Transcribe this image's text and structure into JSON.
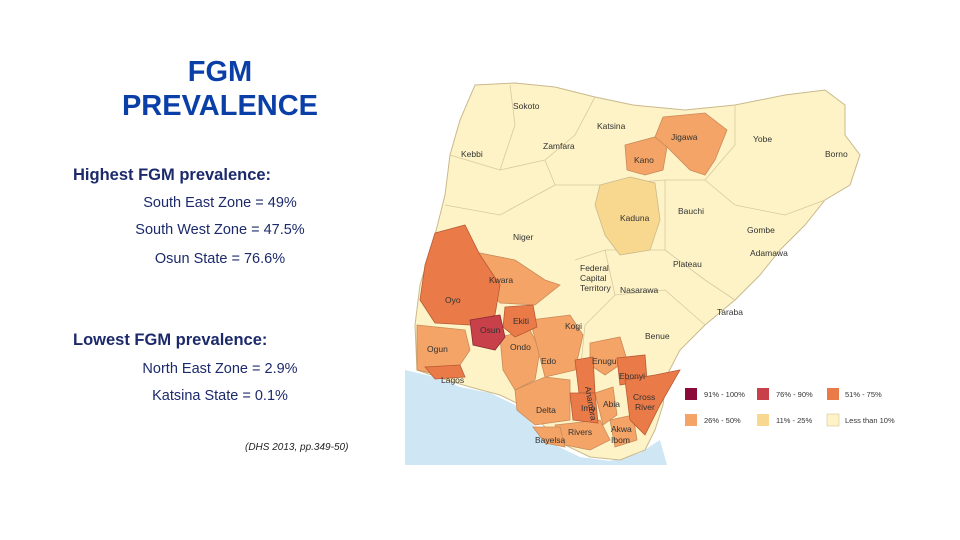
{
  "title": {
    "line1": "FGM",
    "line2": "PREVALENCE"
  },
  "highest": {
    "heading": "Highest FGM prevalence:",
    "items": [
      "South East Zone = 49%",
      "South West Zone = 47.5%",
      "Osun State = 76.6%"
    ]
  },
  "lowest": {
    "heading": "Lowest FGM prevalence:",
    "items": [
      "North East Zone = 2.9%",
      "Katsina State = 0.1%"
    ]
  },
  "citation": "(DHS 2013, pp.349-50)",
  "map": {
    "regions": {
      "sokoto": "Sokoto",
      "katsina": "Katsina",
      "jigawa": "Jigawa",
      "yobe": "Yobe",
      "kebbi": "Kebbi",
      "zamfara": "Zamfara",
      "kano": "Kano",
      "borno": "Borno",
      "kaduna": "Kaduna",
      "bauchi": "Bauchi",
      "gombe": "Gombe",
      "niger": "Niger",
      "adamawa": "Adamawa",
      "fct1": "Federal",
      "fct2": "Capital",
      "fct3": "Territory",
      "plateau": "Plateau",
      "kwara": "Kwara",
      "nasarawa": "Nasarawa",
      "oyo": "Oyo",
      "taraba": "Taraba",
      "ekiti": "Ekiti",
      "kogi": "Kogi",
      "osun": "Osun",
      "benue": "Benue",
      "ogun": "Ogun",
      "ondo": "Ondo",
      "edo": "Edo",
      "enugu": "Enugu",
      "lagos": "Lagos",
      "anambra": "Anambra",
      "ebonyi": "Ebonyi",
      "imo": "Imo",
      "abia": "Abia",
      "cross1": "Cross",
      "cross2": "River",
      "delta": "Delta",
      "rivers": "Rivers",
      "akwa1": "Akwa",
      "akwa2": "Ibom",
      "bayelsa": "Bayelsa"
    },
    "colors": {
      "c91": "#8b0a3a",
      "c76": "#c8404a",
      "c51": "#ea7a48",
      "c26": "#f4a466",
      "c11": "#f8d88f",
      "c0": "#fdf3c6",
      "water": "#cfe6f5"
    },
    "legend": [
      {
        "label": "91% - 100%",
        "color_key": "c91"
      },
      {
        "label": "76% - 90%",
        "color_key": "c76"
      },
      {
        "label": "51% - 75%",
        "color_key": "c51"
      },
      {
        "label": "26% - 50%",
        "color_key": "c26"
      },
      {
        "label": "11% - 25%",
        "color_key": "c11"
      },
      {
        "label": "Less than 10%",
        "color_key": "c0"
      }
    ]
  }
}
